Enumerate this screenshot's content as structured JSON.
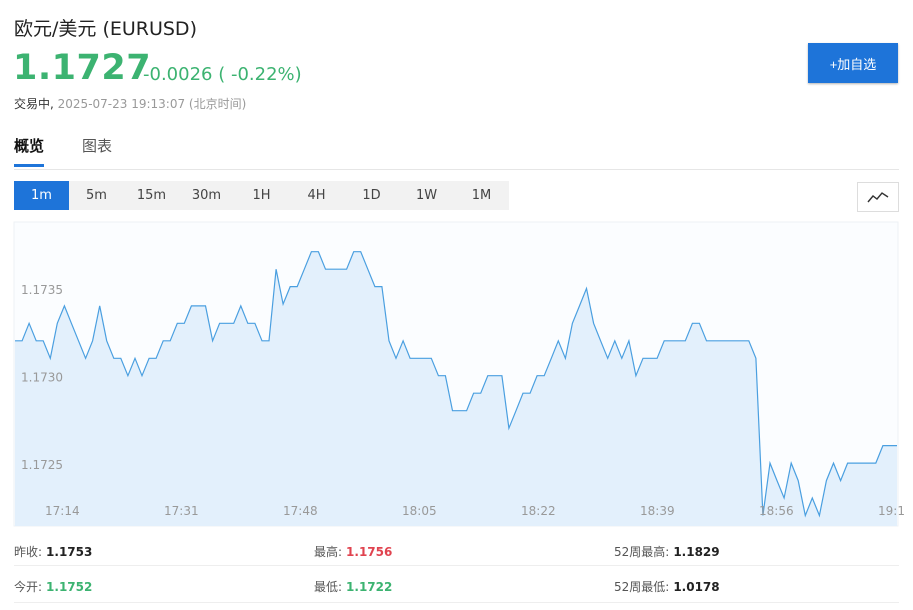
{
  "header": {
    "title": "欧元/美元  (EURUSD)",
    "price": "1.1727",
    "change": "-0.0026 ( -0.22%)",
    "status_label": "交易中,",
    "timestamp": "2025-07-23 19:13:07  (北京时间)",
    "add_button": "+加自选"
  },
  "tabs": [
    {
      "label": "概览",
      "active": true
    },
    {
      "label": "图表",
      "active": false
    }
  ],
  "intervals": [
    "1m",
    "5m",
    "15m",
    "30m",
    "1H",
    "4H",
    "1D",
    "1W",
    "1M"
  ],
  "active_interval": "1m",
  "chart_toggle_icon": "line-chart-icon",
  "colors": {
    "accent": "#1e74d9",
    "down": "#3cb371",
    "up": "#e0434f",
    "line": "#4a9fe0",
    "fill": "#e3f0fc"
  },
  "chart_data": {
    "type": "area",
    "title": "",
    "xlabel": "",
    "ylabel": "",
    "x_ticks": [
      "17:14",
      "17:31",
      "17:48",
      "18:05",
      "18:22",
      "18:39",
      "18:56",
      "19:1"
    ],
    "y_ticks": [
      "1.1735",
      "1.1730",
      "1.1725"
    ],
    "y_tick_values": [
      1.1735,
      1.173,
      1.1725
    ],
    "ylim": [
      1.17215,
      1.17389
    ],
    "grid": false,
    "series": [
      {
        "values": [
          1.17321,
          1.17321,
          1.17331,
          1.17321,
          1.17321,
          1.17311,
          1.17331,
          1.17341,
          1.17331,
          1.17321,
          1.17311,
          1.17321,
          1.17341,
          1.17321,
          1.17311,
          1.17311,
          1.17301,
          1.17311,
          1.17301,
          1.17311,
          1.17311,
          1.17321,
          1.17321,
          1.17331,
          1.17331,
          1.17341,
          1.17341,
          1.17341,
          1.17321,
          1.17331,
          1.17331,
          1.17331,
          1.17341,
          1.17331,
          1.17331,
          1.17321,
          1.17321,
          1.17362,
          1.17342,
          1.17352,
          1.17352,
          1.17362,
          1.17372,
          1.17372,
          1.17362,
          1.17362,
          1.17362,
          1.17362,
          1.17372,
          1.17372,
          1.17362,
          1.17352,
          1.17352,
          1.17321,
          1.17311,
          1.17321,
          1.17311,
          1.17311,
          1.17311,
          1.17311,
          1.17301,
          1.17301,
          1.17281,
          1.17281,
          1.17281,
          1.17291,
          1.17291,
          1.17301,
          1.17301,
          1.17301,
          1.17271,
          1.17281,
          1.17291,
          1.17291,
          1.17301,
          1.17301,
          1.17311,
          1.17321,
          1.17311,
          1.17331,
          1.17341,
          1.17351,
          1.17331,
          1.17321,
          1.17311,
          1.17321,
          1.17311,
          1.17321,
          1.17301,
          1.17311,
          1.17311,
          1.17311,
          1.17321,
          1.17321,
          1.17321,
          1.17321,
          1.17331,
          1.17331,
          1.17321,
          1.17321,
          1.17321,
          1.17321,
          1.17321,
          1.17321,
          1.17321,
          1.17311,
          1.17221,
          1.17251,
          1.17241,
          1.17231,
          1.17251,
          1.17241,
          1.17221,
          1.17231,
          1.17221,
          1.17241,
          1.17251,
          1.17241,
          1.17251,
          1.17251,
          1.17251,
          1.17251,
          1.17251,
          1.17261,
          1.17261,
          1.17261
        ]
      }
    ]
  },
  "stats": [
    {
      "label": "昨收:",
      "value": "1.1753",
      "tone": "neutral"
    },
    {
      "label": "最高:",
      "value": "1.1756",
      "tone": "up"
    },
    {
      "label": "52周最高:",
      "value": "1.1829",
      "tone": "neutral"
    },
    {
      "label": "今开:",
      "value": "1.1752",
      "tone": "down"
    },
    {
      "label": "最低:",
      "value": "1.1722",
      "tone": "down"
    },
    {
      "label": "52周最低:",
      "value": "1.0178",
      "tone": "neutral"
    }
  ]
}
